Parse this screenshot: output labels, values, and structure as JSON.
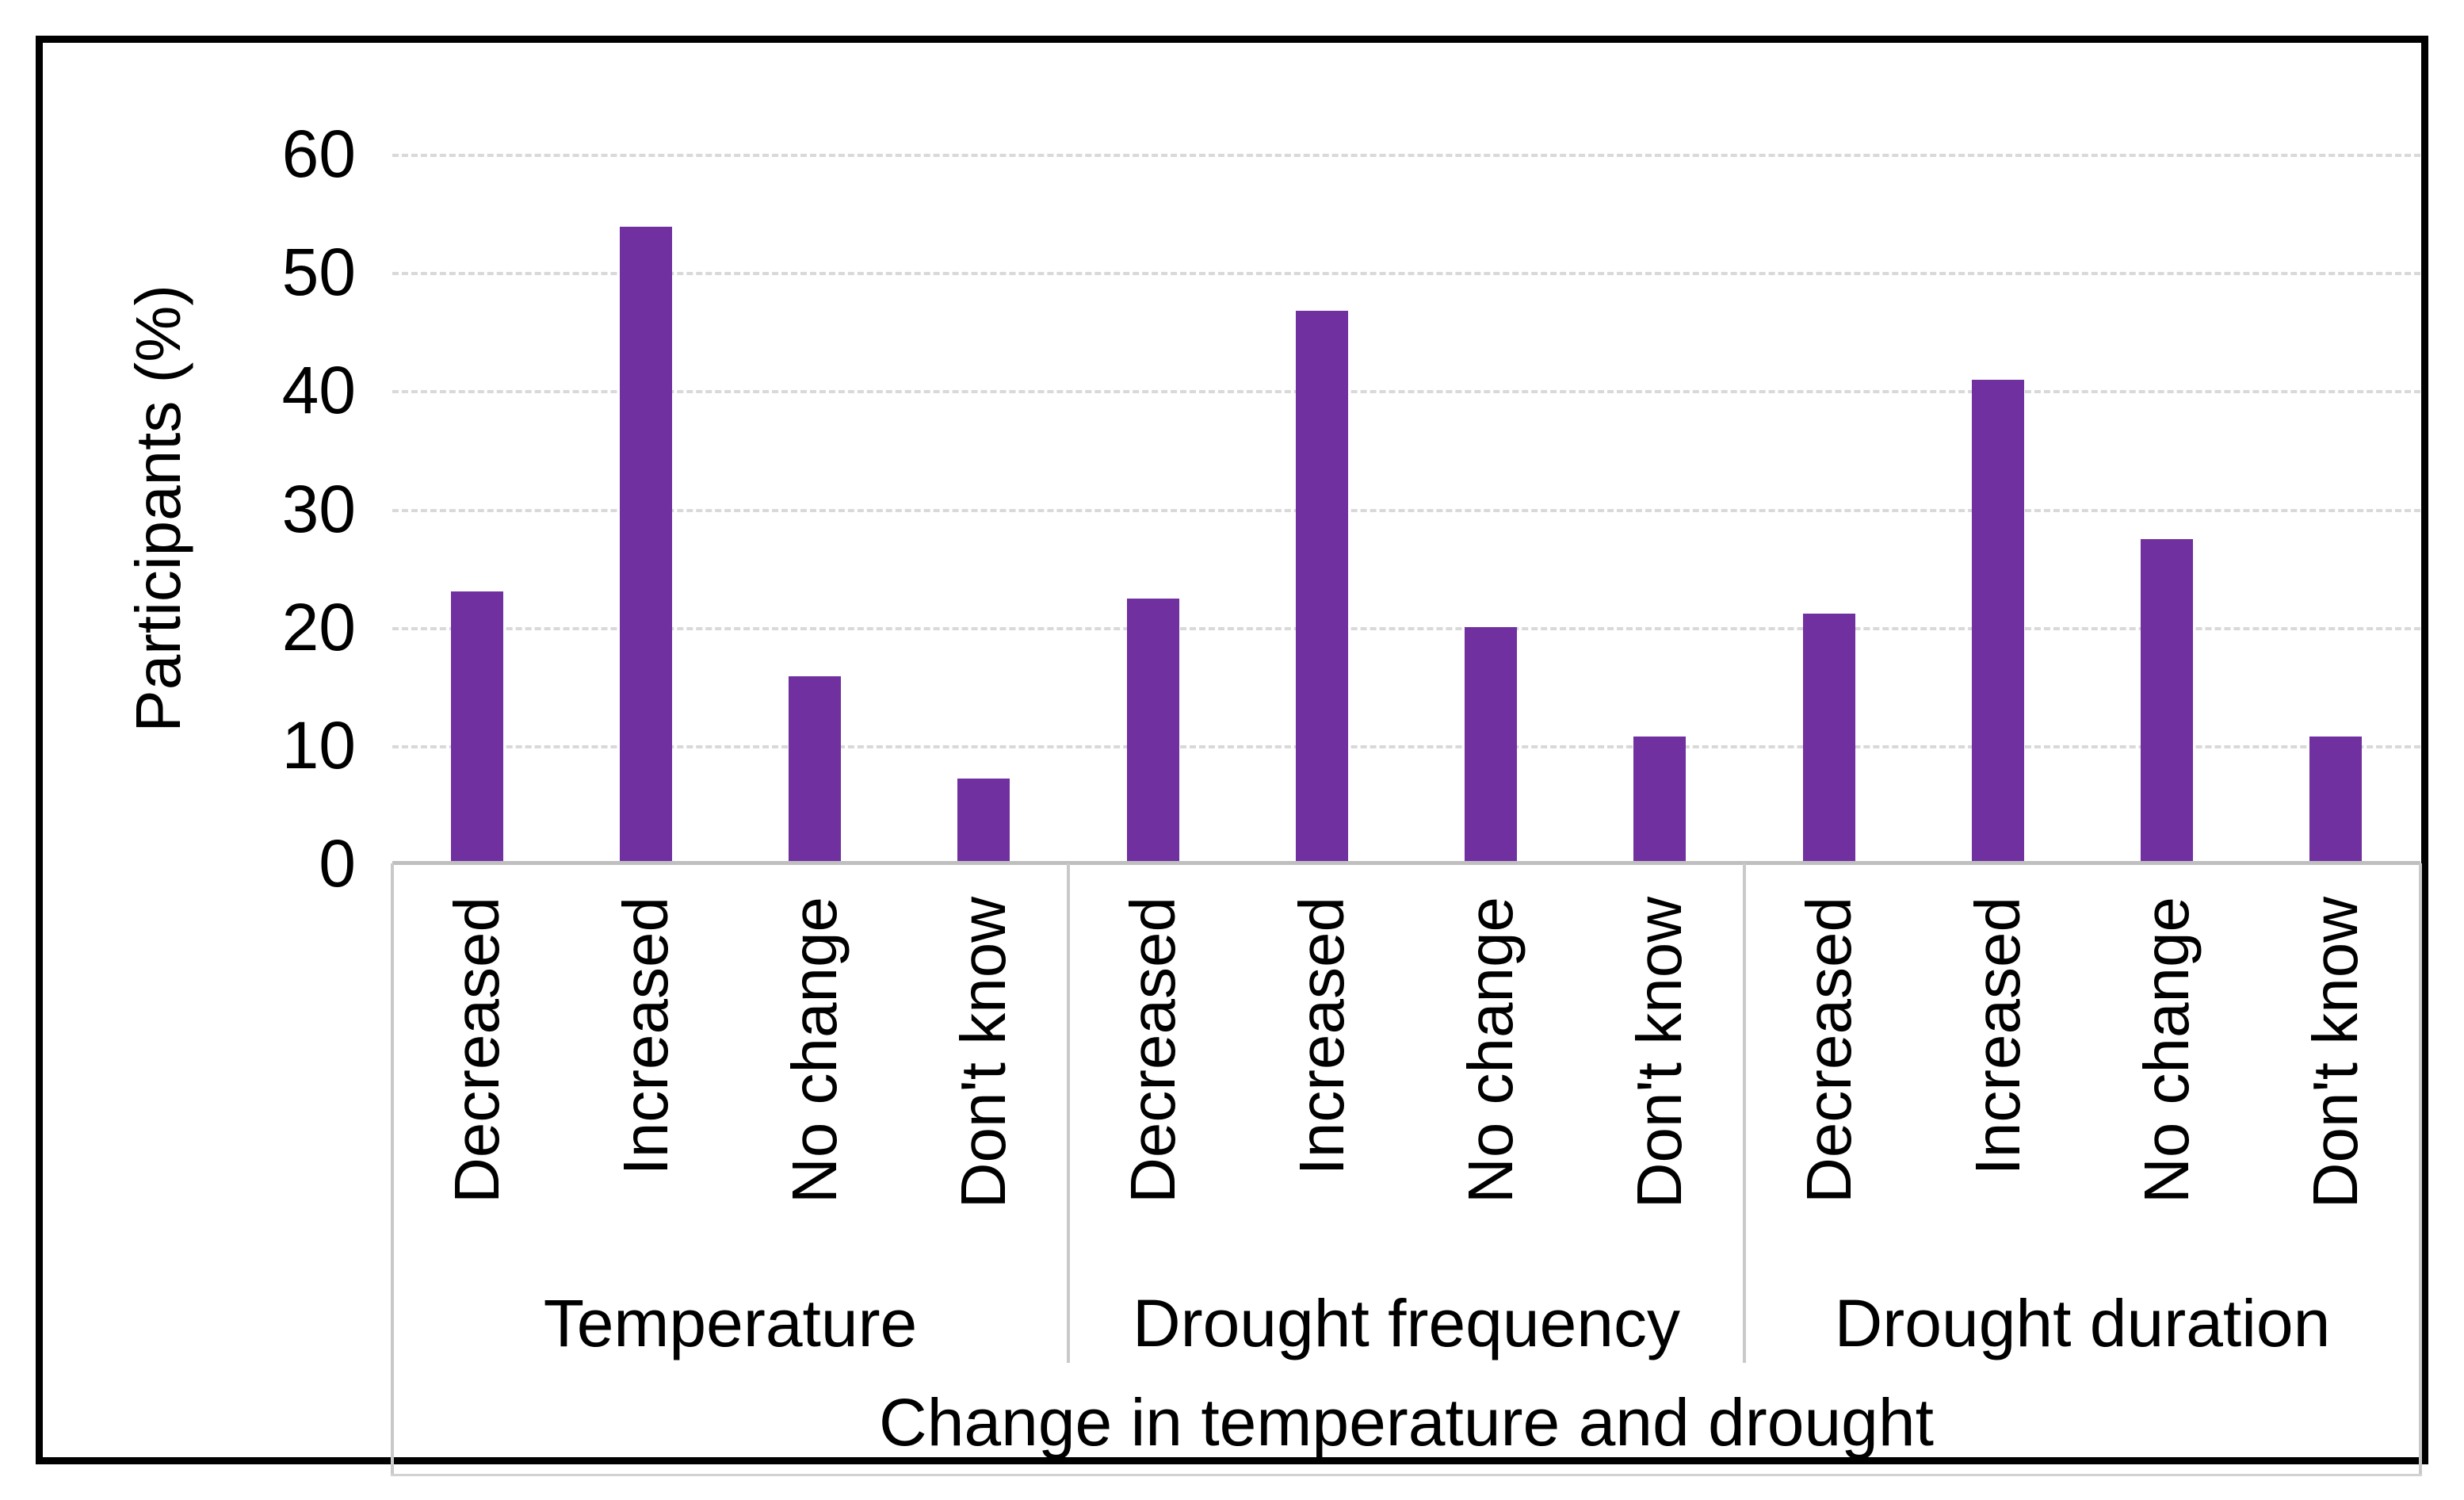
{
  "chart_data": {
    "type": "bar",
    "title": "",
    "ylabel": "Participants (%)",
    "xlabel": "Change in temperature and drought",
    "ylim": [
      0,
      60
    ],
    "yticks": [
      0,
      10,
      20,
      30,
      40,
      50,
      60
    ],
    "grid": "horizontal dashed gridlines at every 10",
    "legend": "none",
    "bar_color": "#7030A0",
    "categories": [
      "Decreased",
      "Increased",
      "No change",
      "Don't know"
    ],
    "groups": [
      {
        "label": "Temperature",
        "values": [
          23.0,
          53.8,
          15.8,
          7.2
        ]
      },
      {
        "label": "Drought frequency",
        "values": [
          22.4,
          46.7,
          20.0,
          10.7
        ]
      },
      {
        "label": "Drought duration",
        "values": [
          21.1,
          40.9,
          27.4,
          10.7
        ]
      }
    ]
  },
  "colors": {
    "bar": "#7030A0",
    "gridline": "#d9d9d9",
    "axis_line": "#bfbfbf",
    "separator": "#c9c9c9",
    "frame_border": "#000000",
    "background": "#ffffff",
    "text": "#000000"
  }
}
